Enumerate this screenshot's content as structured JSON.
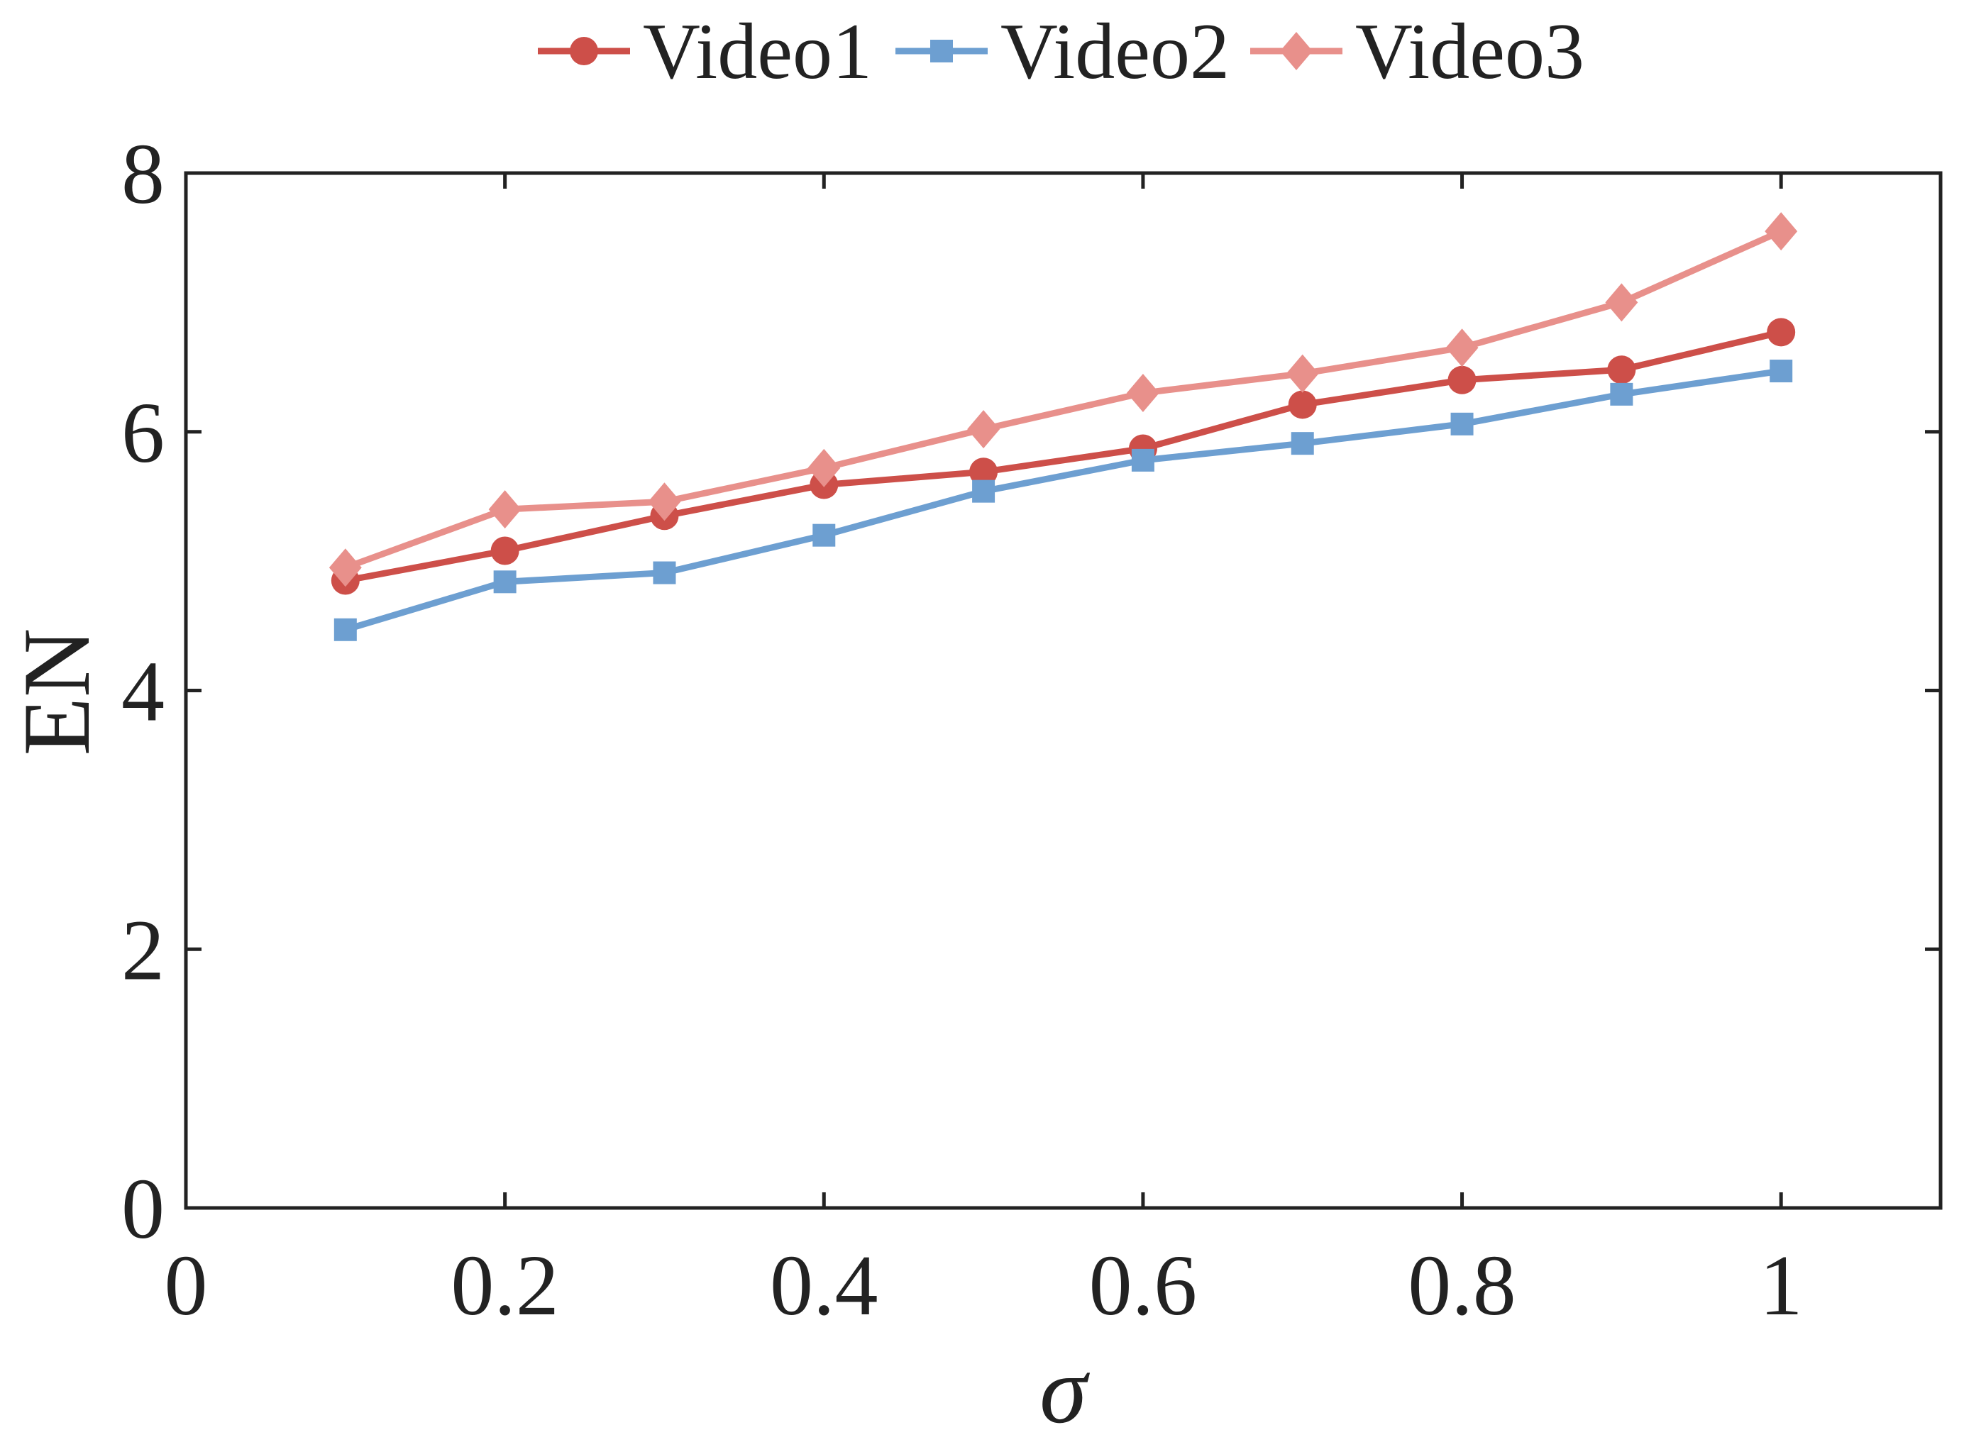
{
  "chart_data": {
    "type": "line",
    "title": "",
    "xlabel": "σ",
    "ylabel": "EN",
    "xlim": [
      0,
      1.1
    ],
    "ylim": [
      0,
      8
    ],
    "xticks": [
      0,
      0.2,
      0.4,
      0.6,
      0.8,
      1
    ],
    "xtick_labels": [
      "0",
      "0.2",
      "0.4",
      "0.6",
      "0.8",
      "1"
    ],
    "yticks": [
      0,
      2,
      4,
      6,
      8
    ],
    "ytick_labels": [
      "0",
      "2",
      "4",
      "6",
      "8"
    ],
    "grid": false,
    "legend_position": "top-center",
    "x": [
      0.1,
      0.2,
      0.3,
      0.4,
      0.5,
      0.6,
      0.7,
      0.8,
      0.9,
      1.0
    ],
    "series": [
      {
        "name": "Video1",
        "marker": "circle",
        "color": "#cd4f49",
        "values": [
          4.85,
          5.08,
          5.35,
          5.59,
          5.69,
          5.87,
          6.21,
          6.4,
          6.48,
          6.77
        ]
      },
      {
        "name": "Video2",
        "marker": "square",
        "color": "#6d9fd1",
        "values": [
          4.47,
          4.84,
          4.91,
          5.2,
          5.54,
          5.78,
          5.91,
          6.06,
          6.29,
          6.47
        ]
      },
      {
        "name": "Video3",
        "marker": "diamond",
        "color": "#e8908b",
        "values": [
          4.95,
          5.4,
          5.46,
          5.72,
          6.02,
          6.3,
          6.45,
          6.65,
          7.0,
          7.55
        ]
      }
    ]
  }
}
